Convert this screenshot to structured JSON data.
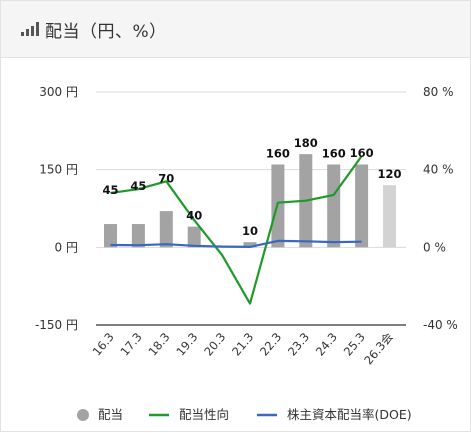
{
  "header": {
    "title": "配当（円、%）",
    "icon": "signal-bars-icon"
  },
  "chart_data": {
    "type": "bar",
    "categories": [
      "16.3",
      "17.3",
      "18.3",
      "19.3",
      "20.3",
      "21.3",
      "22.3",
      "23.3",
      "24.3",
      "25.3",
      "26.3会"
    ],
    "left_axis": {
      "ticks": [
        300,
        150,
        0,
        -150
      ],
      "tick_labels": [
        "300 円",
        "150 円",
        "0 円",
        "-150 円"
      ],
      "range": [
        -150,
        300
      ]
    },
    "right_axis": {
      "ticks": [
        80,
        40,
        0,
        -40
      ],
      "tick_labels": [
        "80 %",
        "40 %",
        "0 %",
        "-40 %"
      ],
      "range": [
        -40,
        80
      ]
    },
    "grid": true,
    "legend_position": "bottom",
    "series": [
      {
        "name": "配当",
        "kind": "bar",
        "axis": "left",
        "values": [
          45,
          45,
          70,
          40,
          null,
          10,
          160,
          180,
          160,
          160,
          120
        ],
        "labels": [
          "45",
          "45",
          "70",
          "40",
          "",
          "10",
          "160",
          "180",
          "160",
          "160",
          "120"
        ],
        "color": "#a3a3a3",
        "forecast_color": "#d3d3d3",
        "forecast_index": 10
      },
      {
        "name": "配当性向",
        "kind": "line",
        "axis": "right",
        "values": [
          28,
          30,
          34,
          14,
          -4,
          -29,
          23,
          24,
          27,
          47,
          null
        ],
        "color": "#1e9a2a"
      },
      {
        "name": "株主資本配当率(DOE)",
        "kind": "line",
        "axis": "right",
        "values": [
          1.2,
          1.1,
          1.6,
          0.8,
          0.4,
          0.2,
          3.3,
          3.1,
          2.7,
          2.9,
          null
        ],
        "color": "#3a66c4"
      }
    ]
  }
}
